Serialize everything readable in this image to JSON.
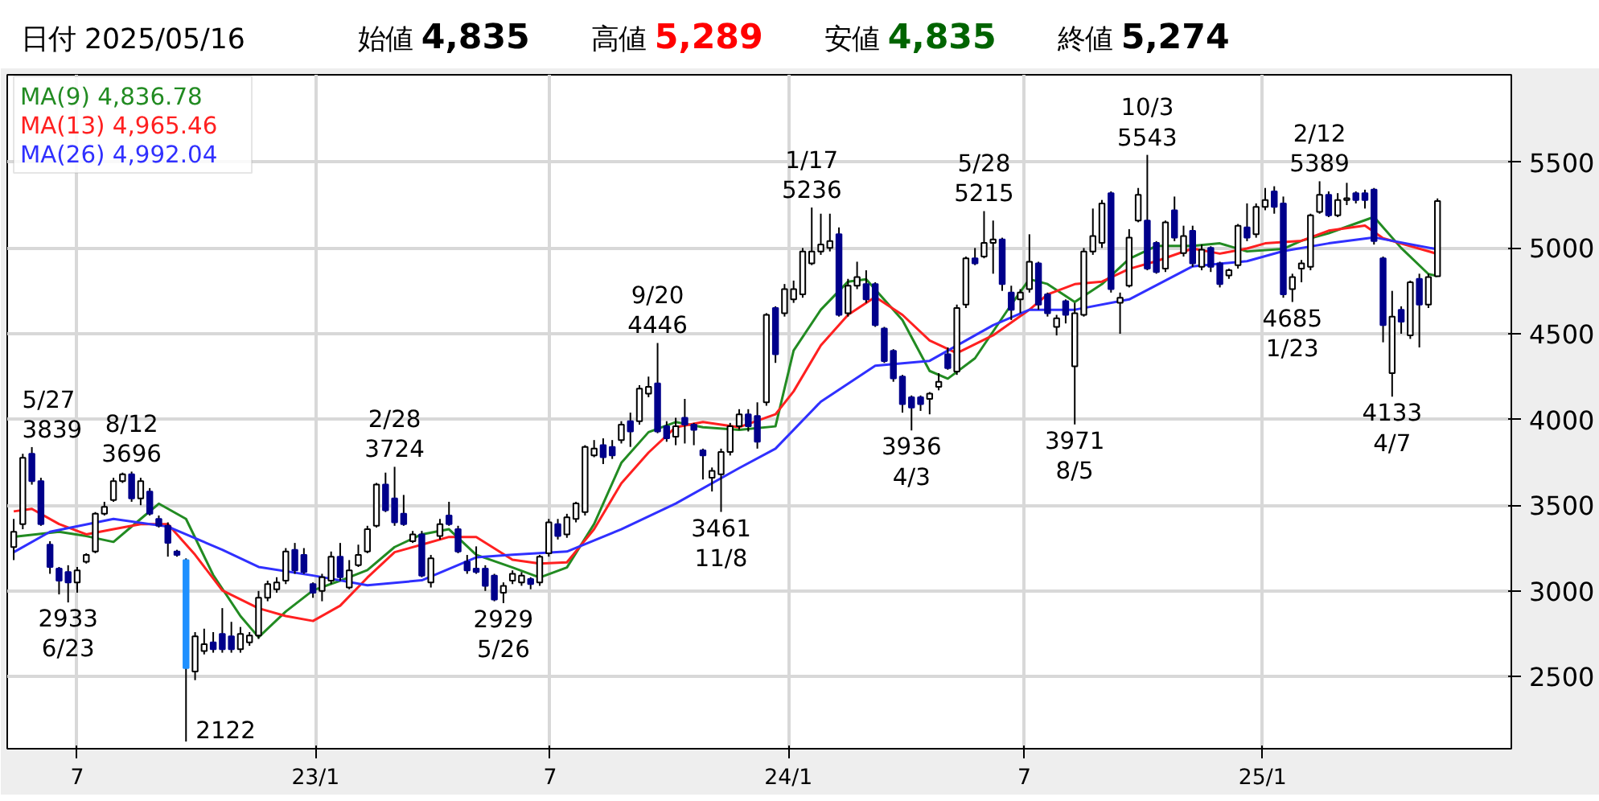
{
  "chart_data": {
    "type": "candlestick",
    "title": "日付 2025/05/16",
    "x": [
      "2022-05-13",
      "2022-05-20",
      "2022-05-27",
      "2022-06-03",
      "2022-06-10",
      "2022-06-17",
      "2022-06-24",
      "2022-07-01",
      "2022-07-08",
      "2022-07-15",
      "2022-07-22",
      "2022-07-29",
      "2022-08-05",
      "2022-08-12",
      "2022-08-19",
      "2022-08-26",
      "2022-09-02",
      "2022-09-09",
      "2022-09-16",
      "2022-09-23",
      "2022-09-30",
      "2022-10-07",
      "2022-10-14",
      "2022-10-21",
      "2022-10-28",
      "2022-11-04",
      "2022-11-11",
      "2022-11-18",
      "2022-11-25",
      "2022-12-02",
      "2022-12-09",
      "2022-12-16",
      "2022-12-23",
      "2022-12-30",
      "2023-01-06",
      "2023-01-13",
      "2023-01-20",
      "2023-01-27",
      "2023-02-03",
      "2023-02-10",
      "2023-02-17",
      "2023-02-24",
      "2023-03-03",
      "2023-03-10",
      "2023-03-17",
      "2023-03-24",
      "2023-03-31",
      "2023-04-07",
      "2023-04-14",
      "2023-04-21",
      "2023-04-28",
      "2023-05-05",
      "2023-05-12",
      "2023-05-19",
      "2023-05-26",
      "2023-06-02",
      "2023-06-09",
      "2023-06-16",
      "2023-06-23",
      "2023-06-30",
      "2023-07-07",
      "2023-07-14",
      "2023-07-21",
      "2023-07-28",
      "2023-08-04",
      "2023-08-11",
      "2023-08-18",
      "2023-08-25",
      "2023-09-01",
      "2023-09-08",
      "2023-09-15",
      "2023-09-22",
      "2023-09-29",
      "2023-10-06",
      "2023-10-13",
      "2023-10-20",
      "2023-10-27",
      "2023-11-03",
      "2023-11-10",
      "2023-11-17",
      "2023-11-24",
      "2023-12-01",
      "2023-12-08",
      "2023-12-15",
      "2023-12-22",
      "2023-12-29",
      "2024-01-05",
      "2024-01-12",
      "2024-01-19",
      "2024-01-26",
      "2024-02-02",
      "2024-02-09",
      "2024-02-16",
      "2024-02-23",
      "2024-03-01",
      "2024-03-08",
      "2024-03-15",
      "2024-03-22",
      "2024-03-29",
      "2024-04-05",
      "2024-04-12",
      "2024-04-19",
      "2024-04-26",
      "2024-05-03",
      "2024-05-10",
      "2024-05-17",
      "2024-05-24",
      "2024-05-31",
      "2024-06-07",
      "2024-06-14",
      "2024-06-21",
      "2024-06-28",
      "2024-07-05",
      "2024-07-12",
      "2024-07-19",
      "2024-07-26",
      "2024-08-02",
      "2024-08-09",
      "2024-08-16",
      "2024-08-23",
      "2024-08-30",
      "2024-09-06",
      "2024-09-13",
      "2024-09-20",
      "2024-09-27",
      "2024-10-04",
      "2024-10-11",
      "2024-10-18",
      "2024-10-25",
      "2024-11-01",
      "2024-11-08",
      "2024-11-15",
      "2024-11-22",
      "2024-11-29",
      "2024-12-06",
      "2024-12-13",
      "2024-12-20",
      "2024-12-27",
      "2025-01-03",
      "2025-01-10",
      "2025-01-17",
      "2025-01-24",
      "2025-01-31",
      "2025-02-07",
      "2025-02-14",
      "2025-02-21",
      "2025-02-28",
      "2025-03-07",
      "2025-03-14",
      "2025-03-21",
      "2025-03-28",
      "2025-04-04",
      "2025-04-11",
      "2025-04-18",
      "2025-04-25",
      "2025-05-02",
      "2025-05-09",
      "2025-05-16"
    ],
    "ohlc": [
      [
        3256,
        3420,
        3180,
        3345
      ],
      [
        3390,
        3800,
        3360,
        3777
      ],
      [
        3800,
        3839,
        3620,
        3640
      ],
      [
        3640,
        3660,
        3380,
        3390
      ],
      [
        3270,
        3290,
        3100,
        3140
      ],
      [
        3130,
        3140,
        2980,
        3060
      ],
      [
        3110,
        3150,
        2933,
        3050
      ],
      [
        3050,
        3140,
        2990,
        3120
      ],
      [
        3170,
        3220,
        3160,
        3210
      ],
      [
        3230,
        3460,
        3220,
        3450
      ],
      [
        3450,
        3520,
        3440,
        3490
      ],
      [
        3530,
        3660,
        3520,
        3640
      ],
      [
        3640,
        3690,
        3630,
        3680
      ],
      [
        3680,
        3696,
        3520,
        3540
      ],
      [
        3540,
        3660,
        3500,
        3640
      ],
      [
        3580,
        3600,
        3440,
        3450
      ],
      [
        3420,
        3440,
        3370,
        3380
      ],
      [
        3380,
        3400,
        3200,
        3280
      ],
      [
        3230,
        3240,
        3200,
        3210
      ],
      [
        3180,
        3190,
        2122,
        2550
      ],
      [
        2530,
        2760,
        2480,
        2735
      ],
      [
        2650,
        2780,
        2630,
        2690
      ],
      [
        2700,
        2760,
        2640,
        2660
      ],
      [
        2750,
        2900,
        2640,
        2660
      ],
      [
        2735,
        2820,
        2640,
        2660
      ],
      [
        2660,
        2790,
        2640,
        2750
      ],
      [
        2700,
        2760,
        2680,
        2740
      ],
      [
        2740,
        3000,
        2720,
        2960
      ],
      [
        2960,
        3060,
        2940,
        3040
      ],
      [
        3010,
        3080,
        2990,
        3050
      ],
      [
        3060,
        3250,
        3040,
        3230
      ],
      [
        3240,
        3280,
        3100,
        3120
      ],
      [
        3210,
        3250,
        3100,
        3110
      ],
      [
        3040,
        3050,
        2960,
        2990
      ],
      [
        3000,
        3100,
        2940,
        3080
      ],
      [
        3060,
        3230,
        3040,
        3200
      ],
      [
        3200,
        3280,
        3060,
        3080
      ],
      [
        3020,
        3180,
        3010,
        3120
      ],
      [
        3150,
        3270,
        3140,
        3210
      ],
      [
        3230,
        3380,
        3220,
        3360
      ],
      [
        3380,
        3630,
        3370,
        3620
      ],
      [
        3620,
        3690,
        3460,
        3470
      ],
      [
        3540,
        3724,
        3380,
        3400
      ],
      [
        3450,
        3560,
        3380,
        3390
      ],
      [
        3290,
        3350,
        3280,
        3330
      ],
      [
        3330,
        3350,
        3080,
        3090
      ],
      [
        3050,
        3210,
        3020,
        3190
      ],
      [
        3320,
        3420,
        3300,
        3390
      ],
      [
        3440,
        3520,
        3380,
        3390
      ],
      [
        3360,
        3380,
        3220,
        3230
      ],
      [
        3170,
        3210,
        3100,
        3120
      ],
      [
        3130,
        3260,
        3100,
        3110
      ],
      [
        3130,
        3150,
        3000,
        3030
      ],
      [
        3090,
        3100,
        2940,
        2950
      ],
      [
        2990,
        3050,
        2929,
        3030
      ],
      [
        3060,
        3120,
        3040,
        3100
      ],
      [
        3050,
        3110,
        3030,
        3090
      ],
      [
        3070,
        3080,
        3010,
        3040
      ],
      [
        3050,
        3210,
        3030,
        3200
      ],
      [
        3220,
        3420,
        3200,
        3400
      ],
      [
        3390,
        3420,
        3300,
        3320
      ],
      [
        3330,
        3450,
        3310,
        3430
      ],
      [
        3420,
        3520,
        3400,
        3510
      ],
      [
        3460,
        3850,
        3440,
        3840
      ],
      [
        3790,
        3880,
        3780,
        3830
      ],
      [
        3850,
        3890,
        3740,
        3780
      ],
      [
        3840,
        3880,
        3770,
        3790
      ],
      [
        3880,
        3990,
        3860,
        3970
      ],
      [
        3990,
        4040,
        3840,
        3930
      ],
      [
        3990,
        4200,
        3970,
        4180
      ],
      [
        4150,
        4250,
        4130,
        4190
      ],
      [
        4210,
        4446,
        3920,
        3930
      ],
      [
        3960,
        3990,
        3870,
        3890
      ],
      [
        3900,
        4010,
        3850,
        3960
      ],
      [
        4010,
        4120,
        3860,
        3970
      ],
      [
        3970,
        3980,
        3850,
        3940
      ],
      [
        3820,
        3830,
        3650,
        3790
      ],
      [
        3660,
        3720,
        3580,
        3700
      ],
      [
        3680,
        3830,
        3461,
        3810
      ],
      [
        3810,
        3980,
        3790,
        3960
      ],
      [
        3960,
        4060,
        3940,
        4030
      ],
      [
        4030,
        4060,
        3930,
        3960
      ],
      [
        4020,
        4100,
        3830,
        3870
      ],
      [
        4100,
        4620,
        4080,
        4610
      ],
      [
        4650,
        4660,
        4330,
        4380
      ],
      [
        4620,
        4790,
        4600,
        4760
      ],
      [
        4700,
        4810,
        4680,
        4760
      ],
      [
        4730,
        5000,
        4710,
        4980
      ],
      [
        4910,
        5236,
        4900,
        4980
      ],
      [
        4980,
        5200,
        4960,
        5020
      ],
      [
        5000,
        5200,
        4980,
        5040
      ],
      [
        5080,
        5120,
        4600,
        4610
      ],
      [
        4620,
        4820,
        4600,
        4780
      ],
      [
        4780,
        4920,
        4760,
        4830
      ],
      [
        4790,
        4870,
        4680,
        4700
      ],
      [
        4790,
        4800,
        4540,
        4550
      ],
      [
        4530,
        4540,
        4330,
        4340
      ],
      [
        4400,
        4410,
        4220,
        4240
      ],
      [
        4250,
        4260,
        4040,
        4090
      ],
      [
        4130,
        4140,
        3936,
        4070
      ],
      [
        4130,
        4140,
        4050,
        4090
      ],
      [
        4120,
        4160,
        4030,
        4150
      ],
      [
        4190,
        4270,
        4170,
        4220
      ],
      [
        4380,
        4420,
        4290,
        4300
      ],
      [
        4280,
        4670,
        4260,
        4650
      ],
      [
        4670,
        4950,
        4650,
        4940
      ],
      [
        4940,
        5000,
        4900,
        4910
      ],
      [
        4950,
        5215,
        4940,
        5030
      ],
      [
        5030,
        5160,
        4850,
        5050
      ],
      [
        5050,
        5060,
        4750,
        4790
      ],
      [
        4740,
        4780,
        4580,
        4640
      ],
      [
        4700,
        4760,
        4620,
        4740
      ],
      [
        4760,
        5080,
        4740,
        4920
      ],
      [
        4910,
        4920,
        4640,
        4670
      ],
      [
        4730,
        4740,
        4600,
        4620
      ],
      [
        4540,
        4610,
        4490,
        4590
      ],
      [
        4690,
        4700,
        4560,
        4610
      ],
      [
        4310,
        4680,
        3971,
        4620
      ],
      [
        4610,
        5000,
        4600,
        4980
      ],
      [
        4980,
        5230,
        4960,
        5070
      ],
      [
        5030,
        5280,
        5000,
        5260
      ],
      [
        5320,
        5330,
        4740,
        4760
      ],
      [
        4680,
        4740,
        4500,
        4710
      ],
      [
        4780,
        5110,
        4770,
        5060
      ],
      [
        5160,
        5350,
        5150,
        5310
      ],
      [
        5160,
        5543,
        4870,
        4880
      ],
      [
        5030,
        5040,
        4850,
        4860
      ],
      [
        4880,
        5160,
        4860,
        5150
      ],
      [
        5220,
        5300,
        5040,
        5060
      ],
      [
        4970,
        5130,
        4950,
        5070
      ],
      [
        5100,
        5130,
        4890,
        4910
      ],
      [
        4890,
        5020,
        4870,
        4990
      ],
      [
        5000,
        5010,
        4860,
        4890
      ],
      [
        4910,
        4920,
        4770,
        4790
      ],
      [
        4840,
        4880,
        4820,
        4870
      ],
      [
        4900,
        5140,
        4880,
        5130
      ],
      [
        5120,
        5260,
        5040,
        5060
      ],
      [
        5080,
        5260,
        5060,
        5240
      ],
      [
        5240,
        5350,
        5220,
        5280
      ],
      [
        5330,
        5360,
        5200,
        5240
      ],
      [
        5260,
        5300,
        4710,
        4730
      ],
      [
        4760,
        4850,
        4685,
        4830
      ],
      [
        4880,
        4930,
        4800,
        4910
      ],
      [
        4890,
        5200,
        4870,
        5190
      ],
      [
        5210,
        5389,
        5200,
        5310
      ],
      [
        5310,
        5330,
        5180,
        5190
      ],
      [
        5190,
        5320,
        5180,
        5280
      ],
      [
        5280,
        5380,
        5250,
        5290
      ],
      [
        5320,
        5330,
        5260,
        5280
      ],
      [
        5320,
        5340,
        5230,
        5280
      ],
      [
        5340,
        5350,
        5020,
        5040
      ],
      [
        4940,
        4950,
        4450,
        4550
      ],
      [
        4270,
        4750,
        4133,
        4600
      ],
      [
        4640,
        4660,
        4500,
        4570
      ],
      [
        4490,
        4810,
        4470,
        4800
      ],
      [
        4820,
        4850,
        4420,
        4670
      ],
      [
        4670,
        4850,
        4650,
        4830
      ],
      [
        4835,
        5289,
        4835,
        5274
      ]
    ],
    "colors": [
      "#ffffff",
      "#ffffff",
      "#00008b",
      "#00008b",
      "#00008b",
      "#00008b",
      "#00008b",
      "#ffffff",
      "#ffffff",
      "#ffffff",
      "#ffffff",
      "#ffffff",
      "#ffffff",
      "#00008b",
      "#ffffff",
      "#00008b",
      "#00008b",
      "#00008b",
      "#00008b",
      "#1e90ff",
      "#ffffff",
      "#ffffff",
      "#00008b",
      "#00008b",
      "#00008b",
      "#ffffff",
      "#ffffff",
      "#ffffff",
      "#ffffff",
      "#ffffff",
      "#ffffff",
      "#00008b",
      "#00008b",
      "#00008b",
      "#ffffff",
      "#ffffff",
      "#00008b",
      "#ffffff",
      "#ffffff",
      "#ffffff",
      "#ffffff",
      "#00008b",
      "#00008b",
      "#00008b",
      "#ffffff",
      "#00008b",
      "#ffffff",
      "#ffffff",
      "#00008b",
      "#00008b",
      "#00008b",
      "#00008b",
      "#00008b",
      "#00008b",
      "#ffffff",
      "#ffffff",
      "#ffffff",
      "#00008b",
      "#ffffff",
      "#ffffff",
      "#00008b",
      "#ffffff",
      "#ffffff",
      "#ffffff",
      "#ffffff",
      "#00008b",
      "#00008b",
      "#ffffff",
      "#00008b",
      "#ffffff",
      "#ffffff",
      "#00008b",
      "#00008b",
      "#ffffff",
      "#00008b",
      "#00008b",
      "#00008b",
      "#ffffff",
      "#ffffff",
      "#ffffff",
      "#ffffff",
      "#00008b",
      "#00008b",
      "#ffffff",
      "#00008b",
      "#ffffff",
      "#ffffff",
      "#ffffff",
      "#ffffff",
      "#ffffff",
      "#ffffff",
      "#00008b",
      "#ffffff",
      "#ffffff",
      "#00008b",
      "#00008b",
      "#00008b",
      "#00008b",
      "#00008b",
      "#00008b",
      "#00008b",
      "#ffffff",
      "#ffffff",
      "#00008b",
      "#ffffff",
      "#ffffff",
      "#00008b",
      "#ffffff",
      "#ffffff",
      "#00008b",
      "#00008b",
      "#ffffff",
      "#ffffff",
      "#00008b",
      "#00008b",
      "#ffffff",
      "#00008b",
      "#ffffff",
      "#ffffff",
      "#ffffff",
      "#ffffff",
      "#00008b",
      "#ffffff",
      "#ffffff",
      "#ffffff",
      "#00008b",
      "#00008b",
      "#ffffff",
      "#00008b",
      "#ffffff",
      "#00008b",
      "#ffffff",
      "#00008b",
      "#00008b",
      "#ffffff",
      "#ffffff",
      "#00008b",
      "#ffffff",
      "#ffffff",
      "#00008b",
      "#00008b",
      "#ffffff",
      "#ffffff",
      "#ffffff",
      "#ffffff",
      "#00008b",
      "#ffffff",
      "#ffffff",
      "#00008b",
      "#00008b",
      "#00008b",
      "#00008b",
      "#ffffff",
      "#00008b",
      "#ffffff",
      "#00008b",
      "#ffffff",
      "#ffffff"
    ],
    "series": [
      {
        "name": "MA(9) 4,836.78",
        "type": "line",
        "color": "#228b22",
        "x": [
          "2022-05-13",
          "2022-06-17",
          "2022-07-08",
          "2022-07-29",
          "2022-08-19",
          "2022-09-02",
          "2022-09-23",
          "2022-10-14",
          "2022-11-04",
          "2022-11-18",
          "2022-12-09",
          "2022-12-30",
          "2023-01-20",
          "2023-02-10",
          "2023-03-03",
          "2023-03-24",
          "2023-04-14",
          "2023-05-05",
          "2023-06-02",
          "2023-06-23",
          "2023-07-14",
          "2023-08-04",
          "2023-08-25",
          "2023-09-15",
          "2023-10-06",
          "2023-10-27",
          "2023-11-24",
          "2023-12-22",
          "2024-01-05",
          "2024-01-26",
          "2024-02-16",
          "2024-03-01",
          "2024-03-29",
          "2024-04-19",
          "2024-05-03",
          "2024-05-24",
          "2024-06-21",
          "2024-07-05",
          "2024-07-19",
          "2024-08-09",
          "2024-08-30",
          "2024-09-20",
          "2024-10-11",
          "2024-11-08",
          "2024-11-29",
          "2024-12-20",
          "2025-01-17",
          "2025-01-31",
          "2025-02-21",
          "2025-03-28",
          "2025-04-18",
          "2025-05-09",
          "2025-05-16"
        ],
        "values": [
          3316,
          3345,
          3320,
          3286,
          3420,
          3509,
          3420,
          3093,
          2854,
          2730,
          2880,
          3003,
          3060,
          3122,
          3256,
          3330,
          3360,
          3211,
          3137,
          3078,
          3137,
          3390,
          3747,
          3926,
          3985,
          3955,
          3940,
          3960,
          4402,
          4640,
          4804,
          4818,
          4580,
          4283,
          4238,
          4357,
          4670,
          4818,
          4790,
          4685,
          4789,
          4937,
          5012,
          5012,
          5027,
          4980,
          4995,
          5042,
          5086,
          5181,
          5000,
          4848,
          4836.78
        ]
      },
      {
        "name": "MA(13) 4,965.46",
        "type": "line",
        "color": "#ff2020",
        "x": [
          "2022-05-13",
          "2022-05-27",
          "2022-06-17",
          "2022-07-08",
          "2022-07-29",
          "2022-08-19",
          "2022-09-09",
          "2022-09-30",
          "2022-10-21",
          "2022-11-18",
          "2022-12-09",
          "2022-12-30",
          "2023-01-20",
          "2023-02-10",
          "2023-03-03",
          "2023-03-24",
          "2023-04-14",
          "2023-05-05",
          "2023-06-02",
          "2023-06-23",
          "2023-07-14",
          "2023-08-04",
          "2023-08-25",
          "2023-09-15",
          "2023-10-06",
          "2023-10-27",
          "2023-11-24",
          "2023-12-22",
          "2024-01-05",
          "2024-01-26",
          "2024-02-16",
          "2024-03-08",
          "2024-03-29",
          "2024-04-19",
          "2024-05-10",
          "2024-06-07",
          "2024-07-05",
          "2024-07-19",
          "2024-08-09",
          "2024-08-30",
          "2024-09-20",
          "2024-10-11",
          "2024-11-08",
          "2024-11-29",
          "2024-12-20",
          "2025-01-03",
          "2025-01-31",
          "2025-02-21",
          "2025-03-21",
          "2025-04-04",
          "2025-05-16"
        ],
        "values": [
          3464,
          3479,
          3390,
          3330,
          3360,
          3390,
          3390,
          3211,
          3003,
          2899,
          2854,
          2825,
          2914,
          3078,
          3226,
          3270,
          3315,
          3315,
          3182,
          3160,
          3167,
          3360,
          3628,
          3807,
          3955,
          3985,
          3955,
          4030,
          4164,
          4432,
          4610,
          4714,
          4610,
          4461,
          4387,
          4491,
          4640,
          4729,
          4789,
          4804,
          4878,
          4923,
          4997,
          4967,
          4997,
          5027,
          5042,
          5101,
          5131,
          5057,
          4965.46
        ]
      },
      {
        "name": "MA(26) 4,992.04",
        "type": "line",
        "color": "#3030ff",
        "x": [
          "2022-05-13",
          "2022-06-10",
          "2022-07-29",
          "2022-09-09",
          "2022-10-21",
          "2022-11-18",
          "2022-12-30",
          "2023-02-10",
          "2023-03-24",
          "2023-05-05",
          "2023-06-02",
          "2023-07-14",
          "2023-08-25",
          "2023-10-06",
          "2023-11-24",
          "2023-12-22",
          "2024-01-26",
          "2024-03-08",
          "2024-04-19",
          "2024-06-07",
          "2024-07-05",
          "2024-08-09",
          "2024-09-20",
          "2024-11-08",
          "2024-12-20",
          "2025-01-17",
          "2025-02-21",
          "2025-03-28",
          "2025-05-16"
        ],
        "values": [
          3226,
          3345,
          3420,
          3375,
          3240,
          3140,
          3090,
          3033,
          3062,
          3196,
          3211,
          3230,
          3360,
          3510,
          3717,
          3830,
          4104,
          4313,
          4342,
          4550,
          4640,
          4640,
          4700,
          4893,
          4923,
          4982,
          5027,
          5062,
          4992.04
        ]
      }
    ],
    "xlim": [
      "2022-05-08",
      "2025-07-12"
    ],
    "xticks": [
      {
        "value": "2022-07-01",
        "label": "7"
      },
      {
        "value": "2023-01-01",
        "label": "23/1"
      },
      {
        "value": "2023-07-01",
        "label": "7"
      },
      {
        "value": "2024-01-01",
        "label": "24/1"
      },
      {
        "value": "2024-07-01",
        "label": "7"
      },
      {
        "value": "2025-01-01",
        "label": "25/1"
      }
    ],
    "ylim": [
      2080,
      6010
    ],
    "yticks": [
      2500,
      3000,
      3500,
      4000,
      4500,
      5000,
      5500
    ],
    "grid": true,
    "legend": "top left",
    "annotations": [
      "始値 4,835",
      "高値 5,289",
      "安値 4,835",
      "終値 5,274",
      {
        "text": "5/27\n3839",
        "x": "2022-05-27",
        "y": 3839
      },
      {
        "text": "2933\n6/23",
        "x": "2022-06-24",
        "y": 2933
      },
      {
        "text": "8/12\n3696",
        "x": "2022-08-12",
        "y": 3696
      },
      {
        "text": "2122",
        "x": "2022-09-23",
        "y": 2122
      },
      {
        "text": "2/28\n3724",
        "x": "2023-03-03",
        "y": 3724
      },
      {
        "text": "2929\n5/26",
        "x": "2023-05-26",
        "y": 2929
      },
      {
        "text": "9/20\n4446",
        "x": "2023-09-22",
        "y": 4446
      },
      {
        "text": "3461\n11/8",
        "x": "2023-11-10",
        "y": 3461
      },
      {
        "text": "1/17\n5236",
        "x": "2024-01-19",
        "y": 5236
      },
      {
        "text": "3936\n4/3",
        "x": "2024-04-05",
        "y": 3936
      },
      {
        "text": "5/28\n5215",
        "x": "2024-05-31",
        "y": 5215
      },
      {
        "text": "3971\n8/5",
        "x": "2024-08-09",
        "y": 3971
      },
      {
        "text": "10/3\n5543",
        "x": "2024-10-04",
        "y": 5543
      },
      {
        "text": "4685\n1/23",
        "x": "2025-01-24",
        "y": 4685
      },
      {
        "text": "2/12\n5389",
        "x": "2025-02-14",
        "y": 5389
      },
      {
        "text": "4133\n4/7",
        "x": "2025-04-11",
        "y": 4133
      }
    ]
  }
}
